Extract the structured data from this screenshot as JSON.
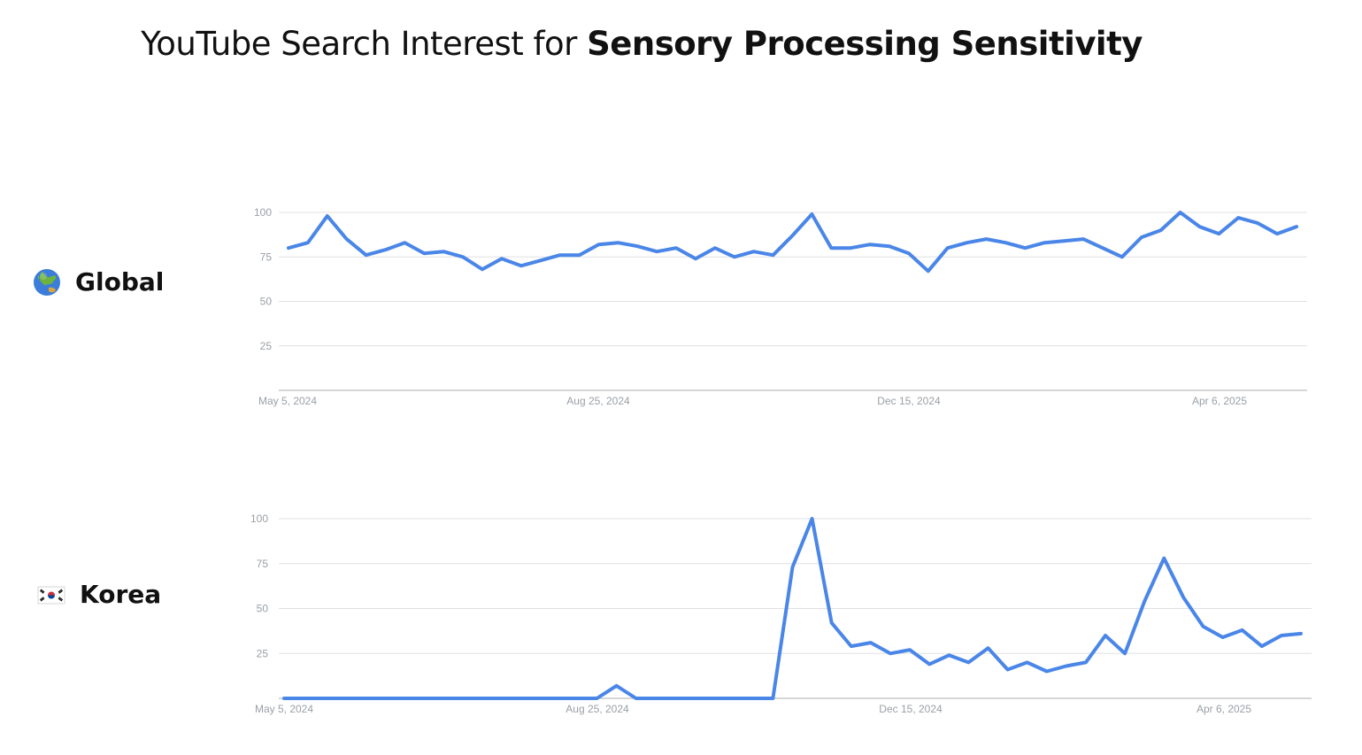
{
  "title": {
    "prefix": "YouTube Search Interest for",
    "topic": "Sensory Processing Sensitivity"
  },
  "colors": {
    "line": "#4a86e8",
    "grid": "#e0e0e0",
    "axis": "#bdbdbd",
    "tick_text": "#9aa0a6"
  },
  "regions": [
    {
      "label": "Global",
      "icon": "globe-asia-australia-icon"
    },
    {
      "label": "Korea",
      "icon": "south-korea-flag-icon"
    }
  ],
  "chart_data": [
    {
      "type": "line",
      "title": "",
      "region": "Global",
      "xlabel": "",
      "ylabel": "",
      "ylim": [
        0,
        100
      ],
      "yticks": [
        25,
        50,
        75,
        100
      ],
      "xticks": [
        "May 5, 2024",
        "Aug 25, 2024",
        "Dec 15, 2024",
        "Apr 6, 2025"
      ],
      "x_start": "2024-05-05",
      "x_interval": "weekly",
      "grid": true,
      "series": [
        {
          "values": [
            80,
            83,
            98,
            85,
            76,
            79,
            83,
            77,
            78,
            75,
            68,
            74,
            70,
            73,
            76,
            76,
            82,
            83,
            81,
            78,
            80,
            74,
            80,
            75,
            78,
            76,
            87,
            99,
            80,
            80,
            82,
            81,
            77,
            67,
            80,
            83,
            85,
            83,
            80,
            83,
            84,
            85,
            80,
            75,
            86,
            90,
            100,
            92,
            88,
            97,
            94,
            88,
            92
          ]
        }
      ]
    },
    {
      "type": "line",
      "title": "",
      "region": "Korea",
      "xlabel": "",
      "ylabel": "",
      "ylim": [
        0,
        100
      ],
      "yticks": [
        25,
        50,
        75,
        100
      ],
      "xticks": [
        "May 5, 2024",
        "Aug 25, 2024",
        "Dec 15, 2024",
        "Apr 6, 2025"
      ],
      "x_start": "2024-05-05",
      "x_interval": "weekly",
      "grid": true,
      "series": [
        {
          "values": [
            0,
            0,
            0,
            0,
            0,
            0,
            0,
            0,
            0,
            0,
            0,
            0,
            0,
            0,
            0,
            0,
            0,
            7,
            0,
            0,
            0,
            0,
            0,
            0,
            0,
            0,
            73,
            100,
            42,
            29,
            31,
            25,
            27,
            19,
            24,
            20,
            28,
            16,
            20,
            15,
            18,
            20,
            35,
            25,
            54,
            78,
            56,
            40,
            34,
            38,
            29,
            35,
            36
          ]
        }
      ]
    }
  ]
}
